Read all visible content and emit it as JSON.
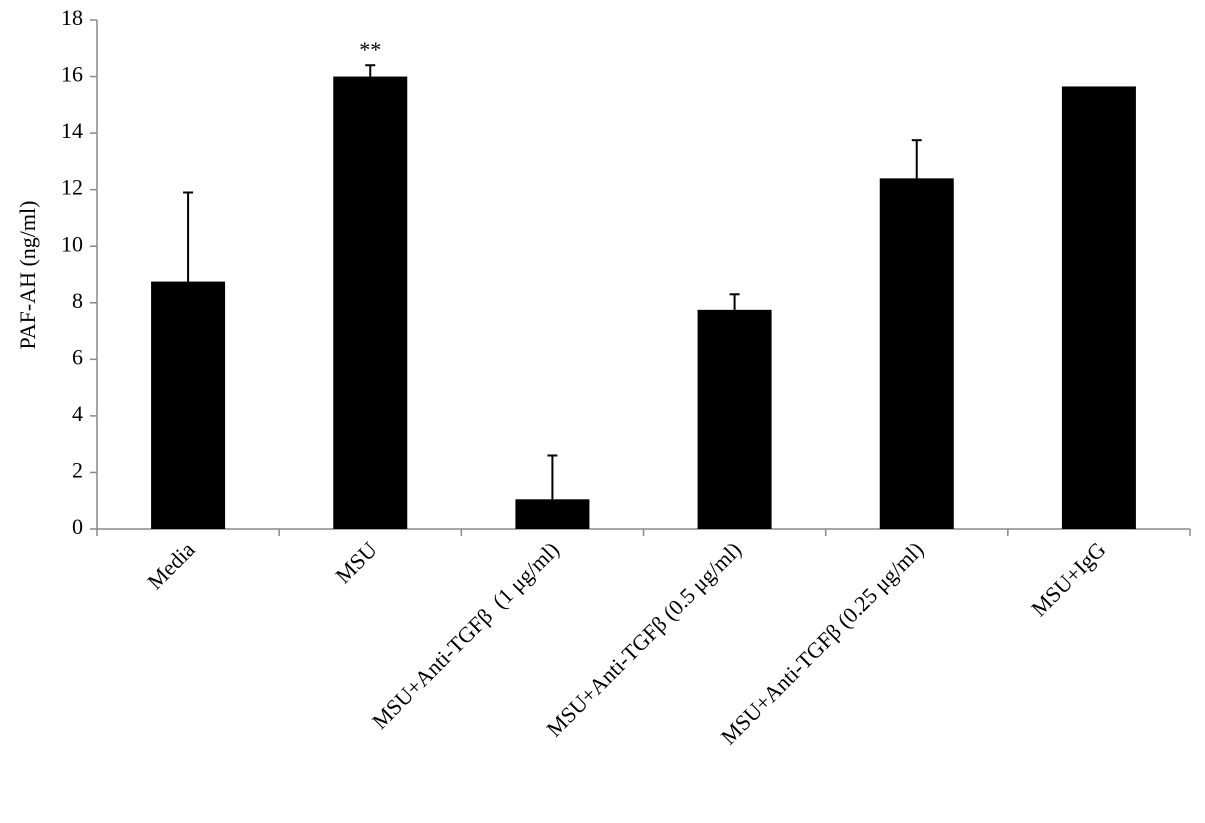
{
  "chart_data": {
    "type": "bar",
    "y_label": "PAF-AH (ng/ml)",
    "categories": [
      "Media",
      "MSU",
      "MSU+Anti-TGFβ  (1 μg/ml)",
      "MSU+Anti-TGFβ (0.5 μg/ml)",
      "MSU+Anti-TGFβ (0.25 μg/ml)",
      "MSU+IgG"
    ],
    "values": [
      8.75,
      16.0,
      1.05,
      7.75,
      12.4,
      15.65
    ],
    "errors": [
      3.15,
      0.4,
      1.55,
      0.55,
      1.35,
      null
    ],
    "color": "#000000",
    "ylim": [
      0,
      18
    ],
    "yticks": [
      0,
      2,
      4,
      6,
      8,
      10,
      12,
      14,
      16,
      18
    ],
    "annotations": [
      {
        "category": "MSU",
        "text": "**"
      }
    ]
  }
}
